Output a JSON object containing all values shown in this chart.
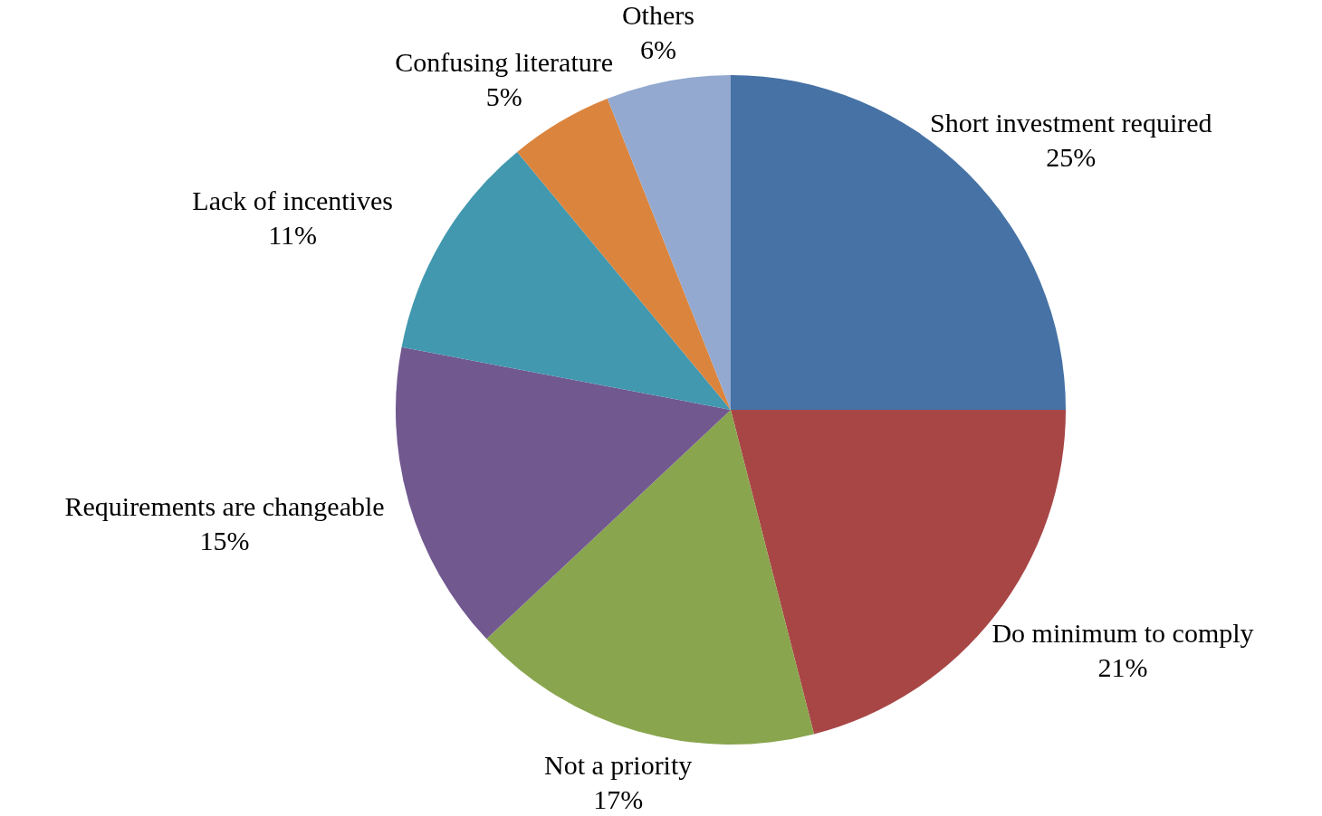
{
  "chart_data": {
    "type": "pie",
    "categories": [
      "Short investment required",
      "Do minimum to comply",
      "Not a priority",
      "Requirements are changeable",
      "Lack of incentives",
      "Confusing literature",
      "Others"
    ],
    "values": [
      25,
      21,
      17,
      15,
      11,
      5,
      6
    ],
    "value_labels": [
      "25%",
      "21%",
      "17%",
      "15%",
      "11%",
      "5%",
      "6%"
    ],
    "colors": [
      "#4672a5",
      "#a84646",
      "#89a54e",
      "#71588f",
      "#4198af",
      "#db843d",
      "#93a9cf"
    ],
    "legend": false
  }
}
